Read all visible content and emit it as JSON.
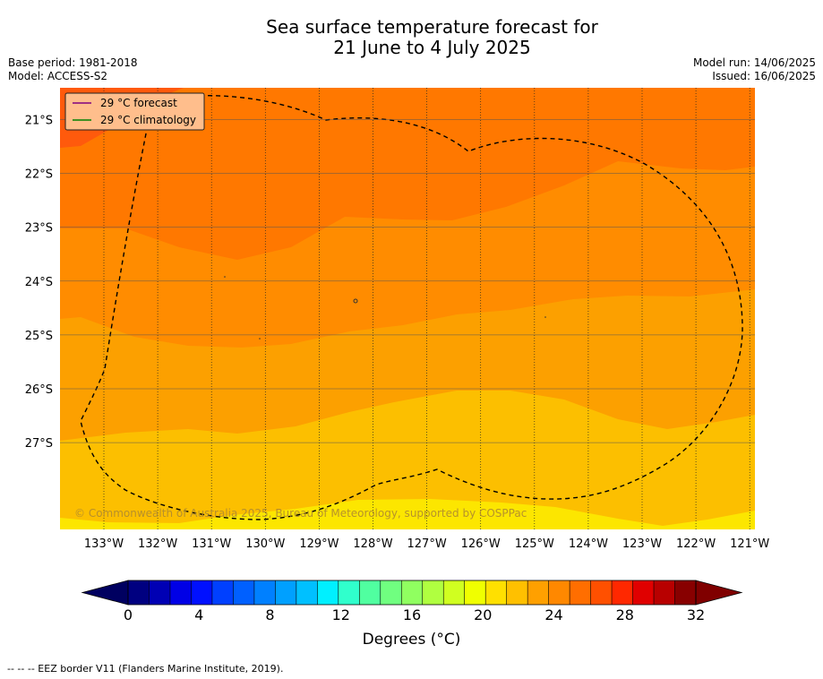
{
  "title": {
    "line1": "Sea surface temperature forecast for",
    "line2": "21 June to 4 July 2025"
  },
  "meta": {
    "base_period": "Base period: 1981-2018",
    "model": "Model: ACCESS-S2",
    "model_run": "Model run: 14/06/2025",
    "issued": "Issued: 16/06/2025"
  },
  "map": {
    "lat_ticks": [
      "21°S",
      "22°S",
      "23°S",
      "24°S",
      "25°S",
      "26°S",
      "27°S"
    ],
    "lon_ticks": [
      "133°W",
      "132°W",
      "131°W",
      "130°W",
      "129°W",
      "128°W",
      "127°W",
      "126°W",
      "125°W",
      "124°W",
      "123°W",
      "122°W",
      "121°W"
    ],
    "band_colors": [
      "#ff5a0c",
      "#ff7800",
      "#ff8c00",
      "#fca000",
      "#fcbf00",
      "#fce600"
    ],
    "copyright": "© Commonwealth of Australia 2025, Bureau of Meteorology, supported by COSPPac"
  },
  "legend": {
    "items": [
      {
        "label": "29 °C  forecast",
        "color": "#800080"
      },
      {
        "label": "29 °C  climatology",
        "color": "#008000"
      }
    ]
  },
  "colorbar": {
    "tick_labels": [
      "0",
      "4",
      "8",
      "12",
      "16",
      "20",
      "24",
      "28",
      "32"
    ],
    "label": "Degrees (°C)",
    "colors": [
      "#000080",
      "#0000b4",
      "#0000e6",
      "#0010ff",
      "#0040ff",
      "#0060ff",
      "#0080ff",
      "#00a0ff",
      "#00c0ff",
      "#00f0ff",
      "#30ffcc",
      "#50ffa0",
      "#70ff80",
      "#90ff60",
      "#b0ff40",
      "#d0ff20",
      "#f0ff00",
      "#ffe000",
      "#ffc000",
      "#ffa000",
      "#ff8800",
      "#ff6e00",
      "#ff5000",
      "#ff2800",
      "#e00000",
      "#b80000",
      "#880000"
    ],
    "under_color": "#000060",
    "over_color": "#800000"
  },
  "footnote": "--  --  -- EEZ border V11 (Flanders Marine Institute, 2019)."
}
